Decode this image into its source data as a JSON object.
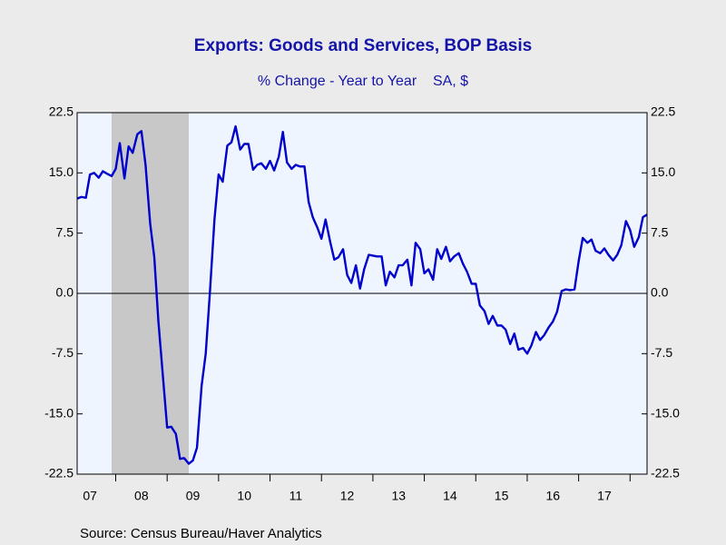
{
  "chart_data": {
    "type": "line",
    "title": "Exports: Goods and Services, BOP Basis",
    "subtitle": "% Change - Year to Year    SA, $",
    "source": "Source:  Census Bureau/Haver Analytics",
    "xlim": [
      2007.25,
      2018.33
    ],
    "xticks": [
      {
        "value": 2007.5,
        "label": "07"
      },
      {
        "value": 2008.5,
        "label": "08"
      },
      {
        "value": 2009.5,
        "label": "09"
      },
      {
        "value": 2010.5,
        "label": "10"
      },
      {
        "value": 2011.5,
        "label": "11"
      },
      {
        "value": 2012.5,
        "label": "12"
      },
      {
        "value": 2013.5,
        "label": "13"
      },
      {
        "value": 2014.5,
        "label": "14"
      },
      {
        "value": 2015.5,
        "label": "15"
      },
      {
        "value": 2016.5,
        "label": "16"
      },
      {
        "value": 2017.5,
        "label": "17"
      }
    ],
    "ylim": [
      -22.5,
      22.5
    ],
    "yticks": [
      22.5,
      {
        "value": 15,
        "label": "15.0"
      },
      7.5,
      {
        "value": 0,
        "label": "0.0"
      },
      -7.5,
      {
        "value": -15,
        "label": "-15.0"
      },
      -22.5
    ],
    "y2lim": [
      -22.5,
      22.5
    ],
    "y2ticks": [
      22.5,
      {
        "value": 15,
        "label": "15.0"
      },
      7.5,
      {
        "value": 0,
        "label": "0.0"
      },
      -7.5,
      {
        "value": -15,
        "label": "-15.0"
      },
      -22.5
    ],
    "recession": [
      [
        2007.92,
        2009.42
      ]
    ],
    "recession_color": "#c8c8c8",
    "plot_background": "#eef5ff",
    "x": [
      2007.25,
      2007.33,
      2007.42,
      2007.5,
      2007.58,
      2007.67,
      2007.75,
      2007.83,
      2007.92,
      2008,
      2008.08,
      2008.17,
      2008.25,
      2008.33,
      2008.42,
      2008.5,
      2008.58,
      2008.67,
      2008.75,
      2008.83,
      2008.92,
      2009,
      2009.08,
      2009.17,
      2009.25,
      2009.33,
      2009.42,
      2009.5,
      2009.58,
      2009.67,
      2009.75,
      2009.83,
      2009.92,
      2010,
      2010.08,
      2010.17,
      2010.25,
      2010.33,
      2010.42,
      2010.5,
      2010.58,
      2010.67,
      2010.75,
      2010.83,
      2010.92,
      2011,
      2011.08,
      2011.17,
      2011.25,
      2011.33,
      2011.42,
      2011.5,
      2011.58,
      2011.67,
      2011.75,
      2011.83,
      2011.92,
      2012,
      2012.08,
      2012.17,
      2012.25,
      2012.33,
      2012.42,
      2012.5,
      2012.58,
      2012.67,
      2012.75,
      2012.83,
      2012.92,
      2013,
      2013.08,
      2013.17,
      2013.25,
      2013.33,
      2013.42,
      2013.5,
      2013.58,
      2013.67,
      2013.75,
      2013.83,
      2013.92,
      2014,
      2014.08,
      2014.17,
      2014.25,
      2014.33,
      2014.42,
      2014.5,
      2014.58,
      2014.67,
      2014.75,
      2014.83,
      2014.92,
      2015,
      2015.08,
      2015.17,
      2015.25,
      2015.33,
      2015.42,
      2015.5,
      2015.58,
      2015.67,
      2015.75,
      2015.83,
      2015.92,
      2016,
      2016.08,
      2016.17,
      2016.25,
      2016.33,
      2016.42,
      2016.5,
      2016.58,
      2016.67,
      2016.75,
      2016.83,
      2016.92,
      2017,
      2017.08,
      2017.17,
      2017.25,
      2017.33,
      2017.42,
      2017.5,
      2017.58,
      2017.67,
      2017.75,
      2017.83,
      2017.92,
      2018,
      2018.08,
      2018.17,
      2018.25,
      2018.33
    ],
    "series": [
      {
        "name": "Exports",
        "color": "#0000cc",
        "values": [
          11.8,
          12.0,
          11.9,
          14.8,
          15.0,
          14.4,
          15.2,
          14.9,
          14.6,
          15.5,
          18.7,
          14.3,
          18.3,
          17.5,
          19.8,
          20.2,
          16.0,
          8.7,
          4.5,
          -3.5,
          -10.5,
          -16.7,
          -16.6,
          -17.5,
          -20.6,
          -20.5,
          -21.2,
          -20.8,
          -19.2,
          -11.5,
          -7.5,
          0,
          9.2,
          14.8,
          13.9,
          18.4,
          18.8,
          20.8,
          17.9,
          18.6,
          18.6,
          15.4,
          16.0,
          16.2,
          15.5,
          16.5,
          15.3,
          17.0,
          20.1,
          16.3,
          15.5,
          16.0,
          15.8,
          15.8,
          11.4,
          9.5,
          8.2,
          6.8,
          9.2,
          6.4,
          4.2,
          4.5,
          5.5,
          2.3,
          1.3,
          3.5,
          0.6,
          3.0,
          4.8,
          4.7,
          4.6,
          4.6,
          1.0,
          2.7,
          2.0,
          3.5,
          3.5,
          4.2,
          1.0,
          6.3,
          5.5,
          2.5,
          3.0,
          1.7,
          5.5,
          4.3,
          5.8,
          4.0,
          4.6,
          5.0,
          3.7,
          2.7,
          1.2,
          1.2,
          -1.5,
          -2.2,
          -3.8,
          -2.8,
          -4.0,
          -4.0,
          -4.5,
          -6.3,
          -5.0,
          -7.0,
          -6.8,
          -7.5,
          -6.5,
          -4.8,
          -5.8,
          -5.2,
          -4.2,
          -3.5,
          -2.3,
          0.3,
          0.5,
          0.4,
          0.5,
          4.0,
          6.9,
          6.3,
          6.7,
          5.3,
          5.0,
          5.6,
          4.8,
          4.1,
          4.8,
          6.0,
          9.0,
          7.9,
          5.8,
          7.0,
          9.5,
          9.8
        ]
      }
    ]
  }
}
